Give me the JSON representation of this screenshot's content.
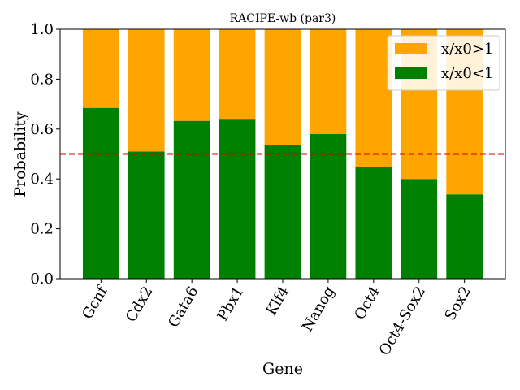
{
  "chart_data": {
    "type": "bar",
    "stacked": true,
    "title": "RACIPE-wb (par3)",
    "xlabel": "Gene",
    "ylabel": "Probability",
    "ylim": [
      0.0,
      1.0
    ],
    "yticks": [
      "0.0",
      "0.2",
      "0.4",
      "0.6",
      "0.8",
      "1.0"
    ],
    "categories": [
      "Gcnf",
      "Cdx2",
      "Gata6",
      "Pbx1",
      "Klf4",
      "Nanog",
      "Oct4",
      "Oct4-Sox2",
      "Sox2"
    ],
    "series": [
      {
        "name": "x/x0<1",
        "color": "#008000",
        "values": [
          0.685,
          0.51,
          0.633,
          0.638,
          0.536,
          0.58,
          0.448,
          0.4,
          0.338
        ]
      },
      {
        "name": "x/x0>1",
        "color": "#FFA500",
        "values": [
          0.315,
          0.49,
          0.367,
          0.362,
          0.464,
          0.42,
          0.552,
          0.6,
          0.662
        ]
      }
    ],
    "reference_line": {
      "y": 0.5,
      "color": "#E00000",
      "style": "dashed"
    },
    "legend": {
      "position": "top-right",
      "order": [
        "x/x0>1",
        "x/x0<1"
      ]
    },
    "grid": false
  }
}
